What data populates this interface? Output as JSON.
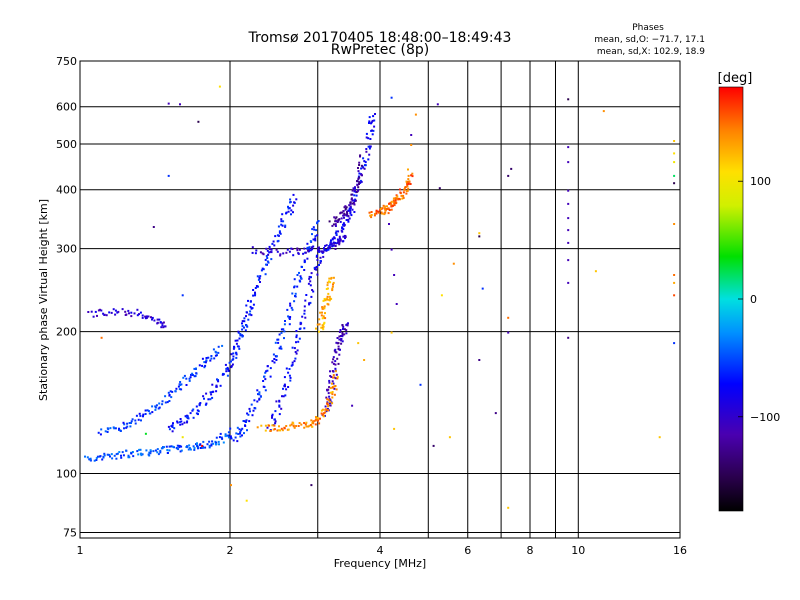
{
  "chart_data": {
    "type": "scatter",
    "title": "Tromsø 20170405 18:48:00–18:49:43",
    "subtitle": "RwPretec (8p)",
    "stats_heading": "Phases",
    "stats_line1": "mean, sd,O: −71.7, 17.1",
    "stats_line2": "mean, sd,X: 102.9, 18.9",
    "xlabel": "Frequency [MHz]",
    "ylabel": "Stationary phase Virtual Height [km]",
    "x_scale": "log",
    "y_scale": "log",
    "xlim": [
      1,
      16
    ],
    "ylim": [
      73,
      750
    ],
    "x_ticks": [
      1,
      2,
      4,
      6,
      8,
      10,
      16
    ],
    "x_ticklabels": [
      "1",
      "2",
      "4",
      "6",
      "8",
      "10",
      "16"
    ],
    "x_minor_grid": [
      3,
      5,
      7,
      9
    ],
    "y_ticks": [
      75,
      100,
      200,
      300,
      400,
      500,
      600,
      750
    ],
    "y_ticklabels": [
      "75",
      "100",
      "200",
      "300",
      "400",
      "500",
      "600",
      "750"
    ],
    "grid": true,
    "colorbar": {
      "label": "[deg]",
      "range": [
        -180,
        180
      ],
      "ticks": [
        100,
        0,
        -100
      ],
      "ticklabels": [
        "100",
        "0",
        "−100"
      ]
    },
    "traces": [
      {
        "phase": -50,
        "points": [
          [
            1.02,
            108
          ],
          [
            1.1,
            109
          ],
          [
            1.2,
            110
          ],
          [
            1.3,
            111
          ],
          [
            1.4,
            112
          ],
          [
            1.5,
            113
          ],
          [
            1.6,
            114
          ],
          [
            1.7,
            115
          ],
          [
            1.8,
            116
          ],
          [
            1.9,
            118
          ],
          [
            2.0,
            124
          ]
        ]
      },
      {
        "phase": -60,
        "points": [
          [
            1.1,
            122
          ],
          [
            1.2,
            126
          ],
          [
            1.3,
            131
          ],
          [
            1.4,
            138
          ],
          [
            1.5,
            146
          ],
          [
            1.6,
            156
          ],
          [
            1.7,
            165
          ],
          [
            1.8,
            176
          ],
          [
            1.9,
            185
          ]
        ]
      },
      {
        "phase": -70,
        "points": [
          [
            1.5,
            125
          ],
          [
            1.6,
            129
          ],
          [
            1.7,
            136
          ],
          [
            1.8,
            146
          ],
          [
            1.9,
            158
          ],
          [
            2.0,
            172
          ],
          [
            2.05,
            185
          ],
          [
            2.1,
            200
          ],
          [
            2.15,
            215
          ],
          [
            2.2,
            235
          ],
          [
            2.3,
            265
          ],
          [
            2.4,
            295
          ],
          [
            2.5,
            330
          ],
          [
            2.6,
            360
          ],
          [
            2.7,
            390
          ]
        ]
      },
      {
        "phase": -65,
        "points": [
          [
            2.0,
            118
          ],
          [
            2.1,
            124
          ],
          [
            2.2,
            135
          ],
          [
            2.3,
            150
          ],
          [
            2.4,
            170
          ],
          [
            2.5,
            190
          ],
          [
            2.6,
            215
          ],
          [
            2.7,
            250
          ],
          [
            2.8,
            285
          ],
          [
            2.9,
            315
          ],
          [
            3.0,
            345
          ]
        ]
      },
      {
        "phase": -80,
        "points": [
          [
            2.4,
            125
          ],
          [
            2.5,
            140
          ],
          [
            2.6,
            160
          ],
          [
            2.7,
            185
          ],
          [
            2.8,
            215
          ],
          [
            2.9,
            255
          ],
          [
            3.0,
            285
          ],
          [
            3.1,
            300
          ],
          [
            3.2,
            310
          ],
          [
            3.3,
            325
          ],
          [
            3.4,
            345
          ],
          [
            3.5,
            370
          ],
          [
            3.6,
            410
          ],
          [
            3.7,
            460
          ],
          [
            3.8,
            530
          ],
          [
            3.85,
            590
          ]
        ]
      },
      {
        "phase": -110,
        "points": [
          [
            3.1,
            135
          ],
          [
            3.15,
            145
          ],
          [
            3.2,
            160
          ],
          [
            3.25,
            175
          ],
          [
            3.3,
            190
          ],
          [
            3.35,
            200
          ],
          [
            3.4,
            210
          ]
        ]
      },
      {
        "phase": -100,
        "points": [
          [
            2.2,
            300
          ],
          [
            2.5,
            295
          ],
          [
            2.8,
            298
          ],
          [
            3.1,
            302
          ],
          [
            3.3,
            310
          ],
          [
            3.4,
            322
          ]
        ]
      },
      {
        "phase": -120,
        "points": [
          [
            3.2,
            340
          ],
          [
            3.3,
            350
          ],
          [
            3.4,
            360
          ],
          [
            3.5,
            380
          ],
          [
            3.6,
            420
          ],
          [
            3.7,
            480
          ]
        ]
      },
      {
        "phase": -95,
        "points": [
          [
            1.05,
            218
          ],
          [
            1.15,
            222
          ],
          [
            1.3,
            220
          ],
          [
            1.4,
            212
          ],
          [
            1.5,
            205
          ]
        ]
      },
      {
        "phase": 140,
        "points": [
          [
            2.3,
            125
          ],
          [
            2.5,
            126
          ],
          [
            2.7,
            127
          ],
          [
            2.9,
            128
          ],
          [
            3.0,
            131
          ],
          [
            3.1,
            138
          ],
          [
            3.2,
            150
          ],
          [
            3.25,
            165
          ]
        ]
      },
      {
        "phase": 130,
        "points": [
          [
            3.0,
            200
          ],
          [
            3.05,
            215
          ],
          [
            3.1,
            230
          ],
          [
            3.15,
            245
          ],
          [
            3.2,
            265
          ]
        ]
      },
      {
        "phase": 150,
        "points": [
          [
            3.8,
            355
          ],
          [
            4.0,
            360
          ],
          [
            4.1,
            365
          ],
          [
            4.2,
            372
          ],
          [
            4.3,
            380
          ],
          [
            4.4,
            392
          ],
          [
            4.5,
            410
          ],
          [
            4.6,
            440
          ]
        ]
      }
    ],
    "scattered_points": [
      {
        "x": 1.5,
        "y": 612,
        "phase": -110
      },
      {
        "x": 1.58,
        "y": 610,
        "phase": -110
      },
      {
        "x": 1.72,
        "y": 560,
        "phase": -150
      },
      {
        "x": 1.9,
        "y": 665,
        "phase": 110
      },
      {
        "x": 2.0,
        "y": 95,
        "phase": 140
      },
      {
        "x": 2.15,
        "y": 88,
        "phase": 110
      },
      {
        "x": 2.9,
        "y": 95,
        "phase": -140
      },
      {
        "x": 1.1,
        "y": 195,
        "phase": 150
      },
      {
        "x": 1.4,
        "y": 335,
        "phase": -130
      },
      {
        "x": 1.6,
        "y": 240,
        "phase": -60
      },
      {
        "x": 1.5,
        "y": 430,
        "phase": -60
      },
      {
        "x": 4.2,
        "y": 630,
        "phase": -60
      },
      {
        "x": 5.2,
        "y": 610,
        "phase": -110
      },
      {
        "x": 5.25,
        "y": 405,
        "phase": -140
      },
      {
        "x": 4.8,
        "y": 155,
        "phase": -60
      },
      {
        "x": 5.1,
        "y": 115,
        "phase": -140
      },
      {
        "x": 5.5,
        "y": 120,
        "phase": 120
      },
      {
        "x": 6.3,
        "y": 175,
        "phase": -130
      },
      {
        "x": 6.3,
        "y": 325,
        "phase": 120
      },
      {
        "x": 6.3,
        "y": 320,
        "phase": -150
      },
      {
        "x": 6.4,
        "y": 248,
        "phase": -60
      },
      {
        "x": 6.8,
        "y": 135,
        "phase": -130
      },
      {
        "x": 7.2,
        "y": 215,
        "phase": 150
      },
      {
        "x": 7.2,
        "y": 200,
        "phase": -110
      },
      {
        "x": 7.2,
        "y": 85,
        "phase": 120
      },
      {
        "x": 7.3,
        "y": 445,
        "phase": -140
      },
      {
        "x": 7.2,
        "y": 430,
        "phase": -140
      },
      {
        "x": 9.5,
        "y": 625,
        "phase": -150
      },
      {
        "x": 9.5,
        "y": 495,
        "phase": -110
      },
      {
        "x": 9.5,
        "y": 460,
        "phase": -110
      },
      {
        "x": 9.5,
        "y": 400,
        "phase": -110
      },
      {
        "x": 9.5,
        "y": 375,
        "phase": -110
      },
      {
        "x": 9.5,
        "y": 350,
        "phase": -110
      },
      {
        "x": 9.5,
        "y": 330,
        "phase": -110
      },
      {
        "x": 9.5,
        "y": 310,
        "phase": -110
      },
      {
        "x": 9.5,
        "y": 285,
        "phase": -110
      },
      {
        "x": 9.5,
        "y": 255,
        "phase": -110
      },
      {
        "x": 9.5,
        "y": 195,
        "phase": -130
      },
      {
        "x": 10.8,
        "y": 270,
        "phase": 120
      },
      {
        "x": 11.2,
        "y": 590,
        "phase": 140
      },
      {
        "x": 14.5,
        "y": 120,
        "phase": 120
      },
      {
        "x": 15.5,
        "y": 510,
        "phase": 120
      },
      {
        "x": 15.5,
        "y": 480,
        "phase": 110
      },
      {
        "x": 15.5,
        "y": 460,
        "phase": 100
      },
      {
        "x": 15.5,
        "y": 430,
        "phase": 20
      },
      {
        "x": 15.5,
        "y": 415,
        "phase": -150
      },
      {
        "x": 15.5,
        "y": 340,
        "phase": 140
      },
      {
        "x": 15.5,
        "y": 265,
        "phase": 150
      },
      {
        "x": 15.5,
        "y": 255,
        "phase": 130
      },
      {
        "x": 15.5,
        "y": 240,
        "phase": 160
      },
      {
        "x": 15.5,
        "y": 190,
        "phase": -60
      },
      {
        "x": 4.15,
        "y": 340,
        "phase": -110
      },
      {
        "x": 4.2,
        "y": 300,
        "phase": -110
      },
      {
        "x": 4.25,
        "y": 265,
        "phase": -110
      },
      {
        "x": 4.3,
        "y": 230,
        "phase": -110
      },
      {
        "x": 4.2,
        "y": 200,
        "phase": 120
      },
      {
        "x": 4.25,
        "y": 125,
        "phase": 120
      },
      {
        "x": 3.5,
        "y": 140,
        "phase": -110
      },
      {
        "x": 3.6,
        "y": 190,
        "phase": 120
      },
      {
        "x": 3.7,
        "y": 175,
        "phase": 130
      },
      {
        "x": 1.6,
        "y": 120,
        "phase": 100
      },
      {
        "x": 1.75,
        "y": 115,
        "phase": 180
      },
      {
        "x": 1.35,
        "y": 122,
        "phase": 30
      },
      {
        "x": 4.6,
        "y": 500,
        "phase": 140
      },
      {
        "x": 4.7,
        "y": 580,
        "phase": 140
      },
      {
        "x": 4.6,
        "y": 525,
        "phase": -110
      },
      {
        "x": 5.3,
        "y": 240,
        "phase": 110
      },
      {
        "x": 5.6,
        "y": 280,
        "phase": 140
      }
    ]
  }
}
